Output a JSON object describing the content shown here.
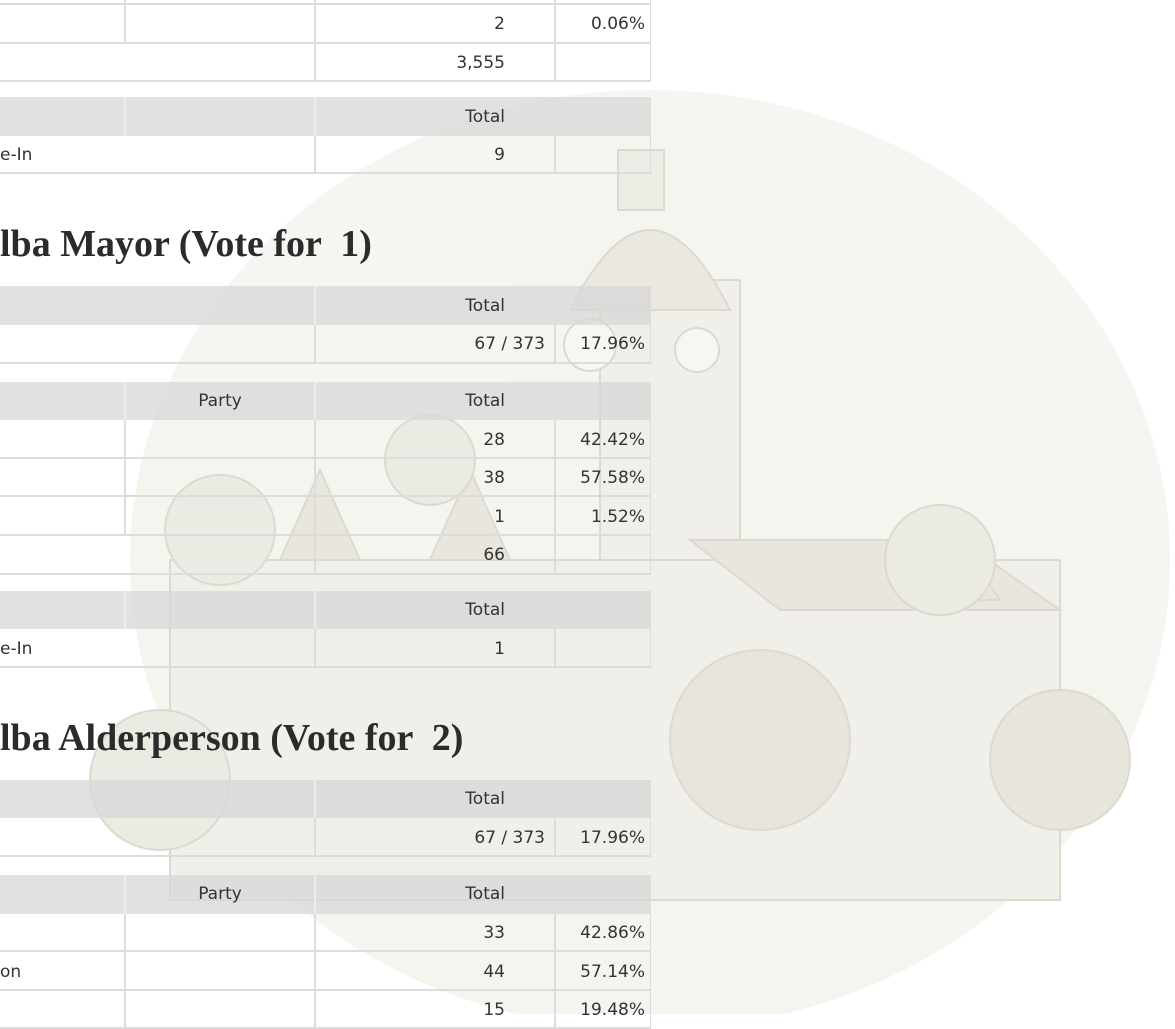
{
  "top_race": {
    "rows": [
      {
        "total": "2",
        "percent": "0.06%"
      }
    ],
    "total": "3,555",
    "write_in": {
      "header": "Total",
      "rows": [
        {
          "name": "e-In",
          "total": "9"
        }
      ]
    }
  },
  "races": [
    {
      "title": "lba Mayor (Vote for  1)",
      "turnout": {
        "header": "Total",
        "total": "67 / 373",
        "percent": "17.96%"
      },
      "results": {
        "headers": [
          "Party",
          "Total"
        ],
        "rows": [
          {
            "total": "28",
            "percent": "42.42%"
          },
          {
            "total": "38",
            "percent": "57.58%"
          },
          {
            "total": "1",
            "percent": "1.52%"
          }
        ],
        "total": "66"
      },
      "write_in": {
        "header": "Total",
        "rows": [
          {
            "name": "e-In",
            "total": "1"
          }
        ]
      }
    },
    {
      "title": "lba Alderperson (Vote for  2)",
      "turnout": {
        "header": "Total",
        "total": "67 / 373",
        "percent": "17.96%"
      },
      "results": {
        "headers": [
          "Party",
          "Total"
        ],
        "rows": [
          {
            "total": "33",
            "percent": "42.86%"
          },
          {
            "name": "on",
            "total": "44",
            "percent": "57.14%"
          },
          {
            "total": "15",
            "percent": "19.48%"
          }
        ]
      }
    }
  ]
}
